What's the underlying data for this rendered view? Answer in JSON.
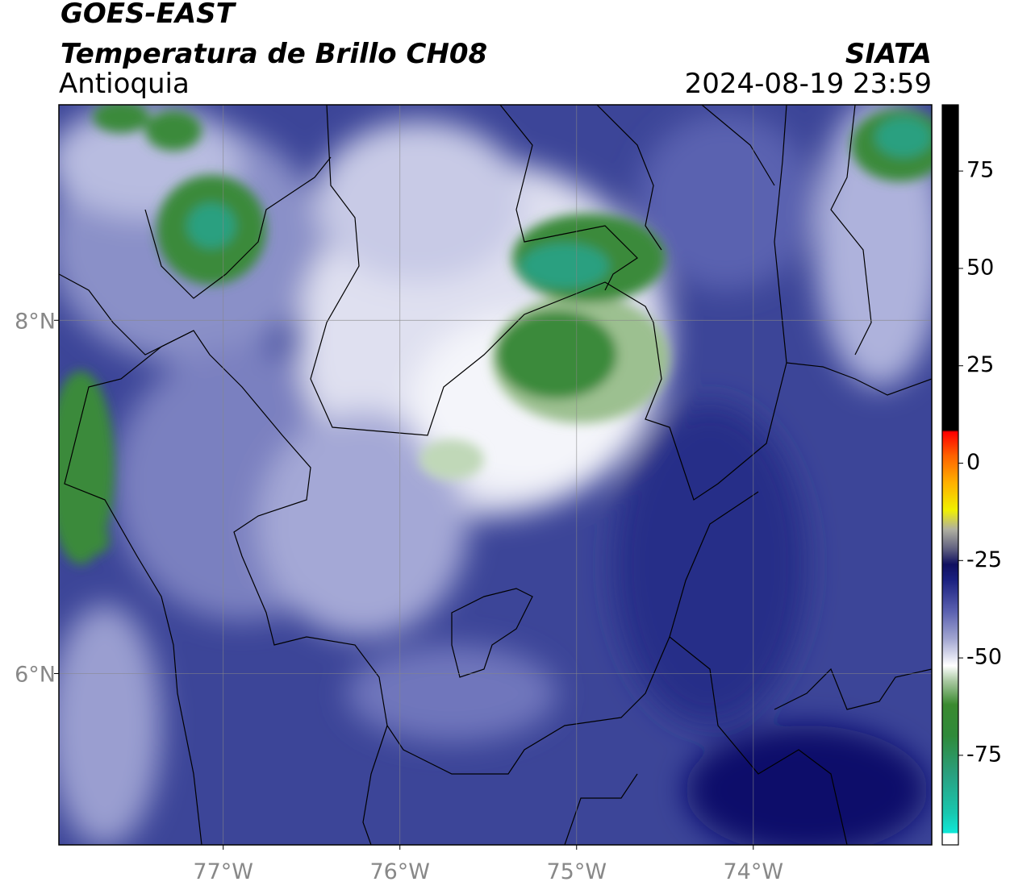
{
  "header": {
    "title": "GOES-EAST",
    "subtitle": "Temperatura de Brillo CH08",
    "region": "Antioquia",
    "source": "SIATA",
    "datetime": "2024-08-19 23:59"
  },
  "map": {
    "xlim": [
      -77.93,
      -72.99
    ],
    "ylim": [
      5.03,
      9.22
    ],
    "xticks": [
      {
        "value": -77,
        "label": "77°W"
      },
      {
        "value": -76,
        "label": "76°W"
      },
      {
        "value": -75,
        "label": "75°W"
      },
      {
        "value": -74,
        "label": "74°W"
      }
    ],
    "yticks": [
      {
        "value": 8,
        "label": "8°N"
      },
      {
        "value": 6,
        "label": "6°N"
      }
    ],
    "grid": true
  },
  "colorbar": {
    "lim": [
      -98,
      92
    ],
    "ticks": [
      75,
      50,
      25,
      0,
      -25,
      -50,
      -75
    ],
    "colormap": [
      [
        -98,
        "#ffffff"
      ],
      [
        -95,
        "#ffffff"
      ],
      [
        -95,
        "#10e8d8"
      ],
      [
        -90,
        "#18c8b0"
      ],
      [
        -80,
        "#2aa080"
      ],
      [
        -70,
        "#2f8a3a"
      ],
      [
        -62,
        "#3a8a30"
      ],
      [
        -56,
        "#a8c8a0"
      ],
      [
        -52,
        "#ffffff"
      ],
      [
        -45,
        "#a0a4d0"
      ],
      [
        -38,
        "#5a60b0"
      ],
      [
        -30,
        "#1a2080"
      ],
      [
        -26,
        "#101060"
      ],
      [
        -22,
        "#606080"
      ],
      [
        -17,
        "#b0b0a0"
      ],
      [
        -12,
        "#f0f000"
      ],
      [
        -5,
        "#ffb000"
      ],
      [
        2,
        "#ff6000"
      ],
      [
        8,
        "#ff0000"
      ],
      [
        8.5,
        "#000000"
      ],
      [
        92,
        "#000000"
      ]
    ]
  }
}
